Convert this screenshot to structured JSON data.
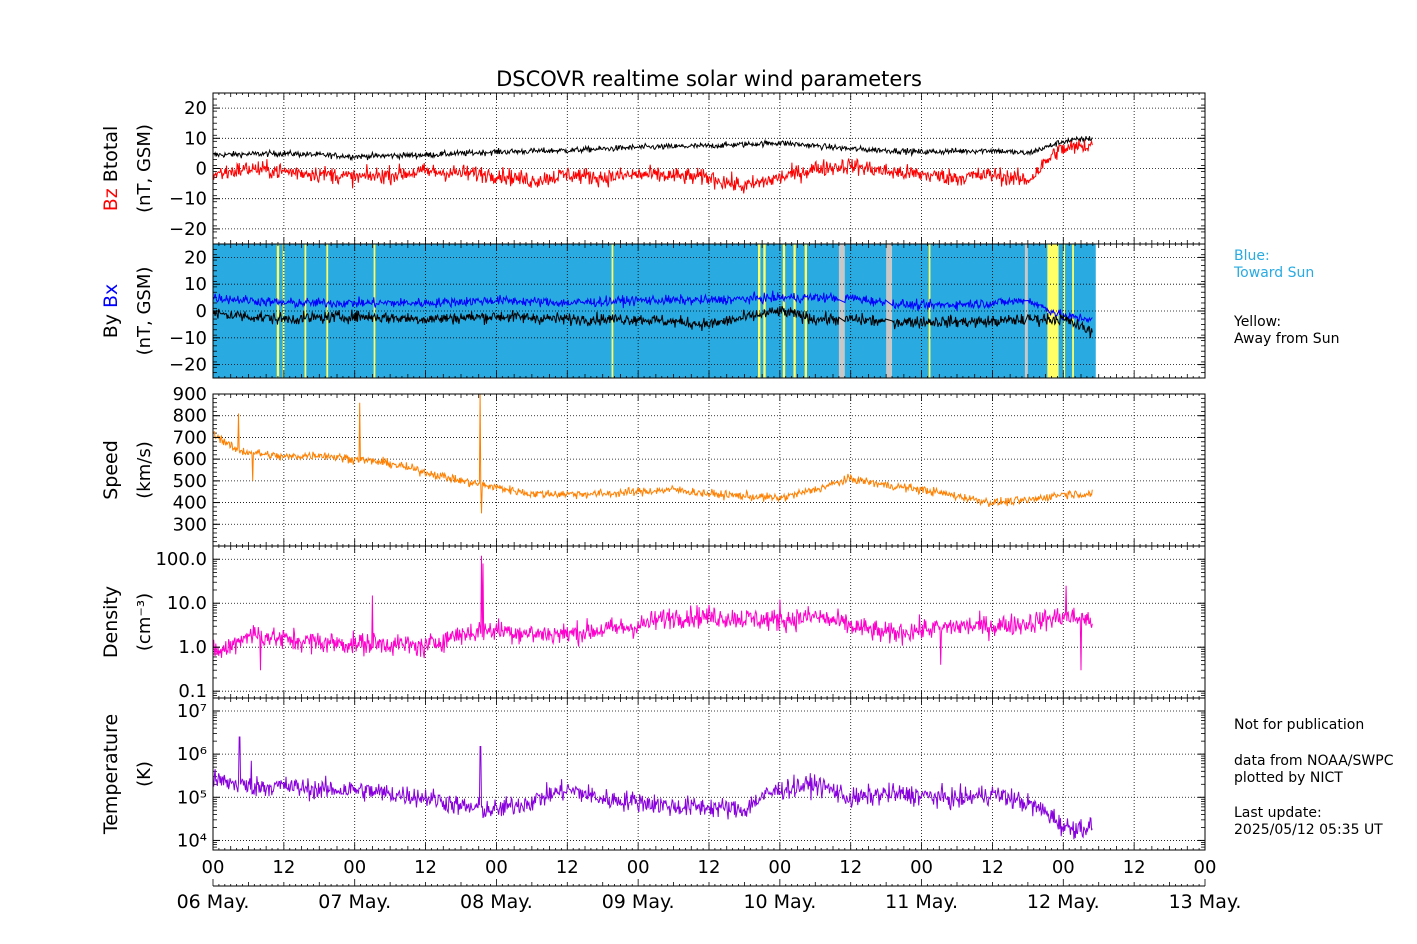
{
  "chart_data": {
    "title": "DSCOVR realtime solar wind parameters",
    "type": "line",
    "x_axis": {
      "tick_labels": [
        "00",
        "12",
        "00",
        "12",
        "00",
        "12",
        "00",
        "12",
        "00",
        "12",
        "00",
        "12",
        "00",
        "12",
        "00"
      ],
      "day_labels": [
        "06 May.",
        "07 May.",
        "08 May.",
        "09 May.",
        "10 May.",
        "11 May.",
        "12 May.",
        "13 May."
      ],
      "range_hours": [
        0,
        168
      ]
    },
    "panels": [
      {
        "id": "magnetic-bz-btotal",
        "ylabel_prefix": "Bz",
        "ylabel_prefix_color": "#ff0000",
        "ylabel_suffix": "Btotal",
        "ylabel_units": "(nT, GSM)",
        "ylim": [
          -25,
          25
        ],
        "ticks": [
          -20,
          -10,
          0,
          10,
          20
        ],
        "tick_labels": [
          "−20",
          "−10",
          "0",
          "10",
          "20"
        ],
        "scale": "linear",
        "series": [
          {
            "name": "Btotal",
            "color": "#000000",
            "base": [
              [
                0,
                4.5
              ],
              [
                12,
                5
              ],
              [
                24,
                4
              ],
              [
                36,
                4.5
              ],
              [
                48,
                5.5
              ],
              [
                60,
                6
              ],
              [
                72,
                7
              ],
              [
                84,
                7.5
              ],
              [
                96,
                8.5
              ],
              [
                108,
                6.5
              ],
              [
                120,
                5.5
              ],
              [
                132,
                6
              ],
              [
                138,
                5
              ],
              [
                144,
                9
              ],
              [
                149,
                10
              ]
            ],
            "noise": 0.7
          },
          {
            "name": "Bz",
            "color": "#ff0000",
            "base": [
              [
                0,
                -2
              ],
              [
                6,
                0
              ],
              [
                12,
                -1
              ],
              [
                20,
                -2
              ],
              [
                24,
                -3
              ],
              [
                36,
                -1
              ],
              [
                48,
                -2
              ],
              [
                54,
                -4
              ],
              [
                60,
                -2
              ],
              [
                66,
                -3
              ],
              [
                72,
                -2
              ],
              [
                84,
                -3
              ],
              [
                90,
                -6
              ],
              [
                96,
                -3
              ],
              [
                102,
                0
              ],
              [
                108,
                1
              ],
              [
                114,
                -1
              ],
              [
                120,
                -2
              ],
              [
                126,
                -3
              ],
              [
                132,
                -2
              ],
              [
                138,
                -4
              ],
              [
                143,
                6
              ],
              [
                149,
                8
              ]
            ],
            "noise": 2.0
          }
        ]
      },
      {
        "id": "magnetic-by-bx",
        "ylabel_prefix": "By",
        "ylabel_prefix_color": "#000000",
        "ylabel_suffix": "Bx",
        "ylabel_suffix_color": "#0000ff",
        "ylabel_units": "(nT, GSM)",
        "ylim": [
          -25,
          25
        ],
        "ticks": [
          -20,
          -10,
          0,
          10,
          20
        ],
        "tick_labels": [
          "−20",
          "−10",
          "0",
          "10",
          "20"
        ],
        "scale": "linear",
        "background": {
          "toward_color": "#29abe2",
          "away_color": "#ffff66",
          "gap_color": "#c8c8c8",
          "end_hour": 149.5
        },
        "away_sectors": [
          [
            10.8,
            11.2
          ],
          [
            11.8,
            12.1
          ],
          [
            15.5,
            15.8
          ],
          [
            19.2,
            19.5
          ],
          [
            27.2,
            27.5
          ],
          [
            67.5,
            67.8
          ],
          [
            92.3,
            92.7
          ],
          [
            93.2,
            93.6
          ],
          [
            96.5,
            96.9
          ],
          [
            98.3,
            98.7
          ],
          [
            100.2,
            100.6
          ],
          [
            121.2,
            121.5
          ],
          [
            141.3,
            143.2
          ],
          [
            144,
            144.3
          ],
          [
            145.5,
            145.8
          ]
        ],
        "gaps": [
          [
            106,
            107
          ],
          [
            114,
            115
          ],
          [
            137.5,
            138
          ]
        ],
        "series": [
          {
            "name": "Bx",
            "color": "#0000ff",
            "base": [
              [
                0,
                5
              ],
              [
                12,
                3
              ],
              [
                24,
                3
              ],
              [
                36,
                3
              ],
              [
                48,
                4
              ],
              [
                60,
                3
              ],
              [
                72,
                4
              ],
              [
                84,
                4
              ],
              [
                96,
                5
              ],
              [
                108,
                5
              ],
              [
                114,
                3
              ],
              [
                120,
                2
              ],
              [
                132,
                3
              ],
              [
                138,
                4
              ],
              [
                144,
                -2
              ],
              [
                149,
                -3
              ]
            ],
            "noise": 1.3
          },
          {
            "name": "By",
            "color": "#000000",
            "base": [
              [
                0,
                -1
              ],
              [
                12,
                -3
              ],
              [
                24,
                -2
              ],
              [
                36,
                -3
              ],
              [
                48,
                -2
              ],
              [
                60,
                -3
              ],
              [
                72,
                -3
              ],
              [
                84,
                -5
              ],
              [
                96,
                0
              ],
              [
                102,
                -3
              ],
              [
                108,
                -3
              ],
              [
                114,
                -4
              ],
              [
                120,
                -4
              ],
              [
                132,
                -4
              ],
              [
                138,
                -3
              ],
              [
                144,
                -3
              ],
              [
                149,
                -8
              ]
            ],
            "noise": 1.6
          }
        ]
      },
      {
        "id": "speed",
        "ylabel": "Speed",
        "ylabel_units": "(km/s)",
        "ylim": [
          200,
          900
        ],
        "ticks": [
          300,
          400,
          500,
          600,
          700,
          800,
          900
        ],
        "tick_labels": [
          "300",
          "400",
          "500",
          "600",
          "700",
          "800",
          "900"
        ],
        "scale": "linear",
        "series": [
          {
            "name": "Speed",
            "color": "#ff8000",
            "base": [
              [
                0,
                720
              ],
              [
                4,
                640
              ],
              [
                12,
                610
              ],
              [
                18,
                620
              ],
              [
                24,
                600
              ],
              [
                30,
                580
              ],
              [
                36,
                540
              ],
              [
                42,
                500
              ],
              [
                48,
                470
              ],
              [
                54,
                440
              ],
              [
                60,
                440
              ],
              [
                66,
                440
              ],
              [
                72,
                450
              ],
              [
                78,
                460
              ],
              [
                84,
                440
              ],
              [
                90,
                430
              ],
              [
                96,
                420
              ],
              [
                102,
                460
              ],
              [
                108,
                510
              ],
              [
                114,
                480
              ],
              [
                120,
                460
              ],
              [
                126,
                430
              ],
              [
                132,
                400
              ],
              [
                138,
                410
              ],
              [
                144,
                440
              ],
              [
                149,
                440
              ]
            ],
            "noise": 14,
            "spikes": [
              [
                4.3,
                810
              ],
              [
                6.7,
                500
              ],
              [
                24.8,
                860
              ],
              [
                45.2,
                900
              ],
              [
                45.5,
                350
              ]
            ]
          }
        ]
      },
      {
        "id": "density",
        "ylabel": "Density",
        "ylabel_units": "(cm⁻³)",
        "ylim": [
          0.07,
          200
        ],
        "ticks": [
          0.1,
          1,
          10,
          100
        ],
        "tick_labels": [
          "0.1",
          "1.0",
          "10.0",
          "100.0"
        ],
        "scale": "log",
        "series": [
          {
            "name": "Density",
            "color": "#ff00cc",
            "base": [
              [
                0,
                0.7
              ],
              [
                3,
                1
              ],
              [
                6,
                2
              ],
              [
                12,
                1.5
              ],
              [
                18,
                1.3
              ],
              [
                24,
                1.2
              ],
              [
                30,
                1.2
              ],
              [
                36,
                1
              ],
              [
                42,
                2
              ],
              [
                48,
                2.5
              ],
              [
                54,
                2
              ],
              [
                60,
                2
              ],
              [
                66,
                2.5
              ],
              [
                72,
                3
              ],
              [
                78,
                5
              ],
              [
                84,
                5
              ],
              [
                90,
                4.5
              ],
              [
                96,
                4
              ],
              [
                102,
                5
              ],
              [
                108,
                3
              ],
              [
                114,
                2
              ],
              [
                120,
                2.5
              ],
              [
                126,
                3
              ],
              [
                132,
                3
              ],
              [
                138,
                3.5
              ],
              [
                144,
                5
              ],
              [
                149,
                4
              ]
            ],
            "noise": 0.18,
            "spikes": [
              [
                27,
                15
              ],
              [
                45.5,
                120
              ],
              [
                45.7,
                80
              ],
              [
                96,
                12
              ],
              [
                144.5,
                25
              ],
              [
                149,
                20
              ],
              [
                8,
                0.3
              ],
              [
                123.2,
                0.4
              ],
              [
                147,
                0.3
              ]
            ]
          }
        ]
      },
      {
        "id": "temperature",
        "ylabel": "Temperature",
        "ylabel_units": "(K)",
        "ylim": [
          6000,
          20000000
        ],
        "ticks": [
          10000,
          100000,
          1000000,
          10000000
        ],
        "tick_labels": [
          "10⁴",
          "10⁵",
          "10⁶",
          "10⁷"
        ],
        "scale": "log",
        "series": [
          {
            "name": "Temperature",
            "color": "#8800dd",
            "base": [
              [
                0,
                250000
              ],
              [
                6,
                180000
              ],
              [
                12,
                180000
              ],
              [
                18,
                150000
              ],
              [
                24,
                150000
              ],
              [
                30,
                120000
              ],
              [
                36,
                100000
              ],
              [
                42,
                60000
              ],
              [
                48,
                50000
              ],
              [
                54,
                80000
              ],
              [
                60,
                150000
              ],
              [
                66,
                90000
              ],
              [
                72,
                80000
              ],
              [
                78,
                60000
              ],
              [
                84,
                60000
              ],
              [
                90,
                50000
              ],
              [
                96,
                150000
              ],
              [
                102,
                200000
              ],
              [
                108,
                90000
              ],
              [
                114,
                120000
              ],
              [
                120,
                110000
              ],
              [
                126,
                90000
              ],
              [
                132,
                120000
              ],
              [
                138,
                70000
              ],
              [
                144,
                20000
              ],
              [
                149,
                20000
              ]
            ],
            "noise": 0.17,
            "spikes": [
              [
                4.5,
                2500000
              ],
              [
                6.5,
                700000
              ],
              [
                45.3,
                1500000
              ]
            ]
          }
        ]
      }
    ],
    "legend_notes": {
      "blue_label": "Blue:",
      "blue_text": "Toward Sun",
      "blue_color": "#29abe2",
      "yellow_label": "Yellow:",
      "yellow_text": "Away from Sun"
    }
  },
  "footer": {
    "line1": "Not for publication",
    "line2": "data from NOAA/SWPC",
    "line3": "plotted by NICT",
    "line4": "Last update:",
    "line5": "2025/05/12 05:35 UT"
  }
}
